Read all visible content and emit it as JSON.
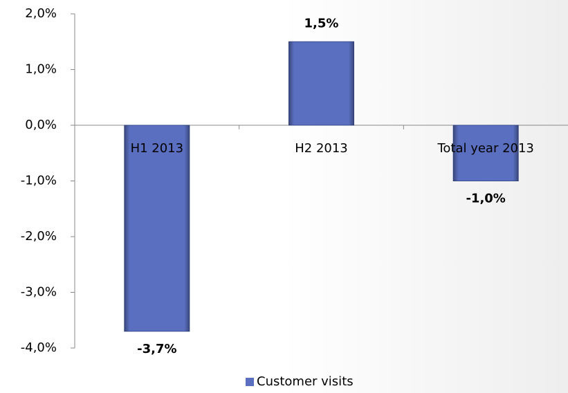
{
  "chart_data": {
    "type": "bar",
    "categories": [
      "H1 2013",
      "H2 2013",
      "Total year 2013"
    ],
    "series": [
      {
        "name": "Customer visits",
        "color": "#5a6fc0",
        "values": [
          -3.7,
          1.5,
          -1.0
        ],
        "value_labels": [
          "-3,7%",
          "1,5%",
          "-1,0%"
        ]
      }
    ],
    "ylim": [
      -4,
      2
    ],
    "yticks": [
      {
        "value": -4,
        "label": "-4,0%"
      },
      {
        "value": -3,
        "label": "-3,0%"
      },
      {
        "value": -2,
        "label": "-2,0%"
      },
      {
        "value": -1,
        "label": "-1,0%"
      },
      {
        "value": 0,
        "label": "0,0%"
      },
      {
        "value": 1,
        "label": "1,0%"
      },
      {
        "value": 2,
        "label": "2,0%"
      }
    ],
    "grid": false,
    "legend": "bottom"
  }
}
